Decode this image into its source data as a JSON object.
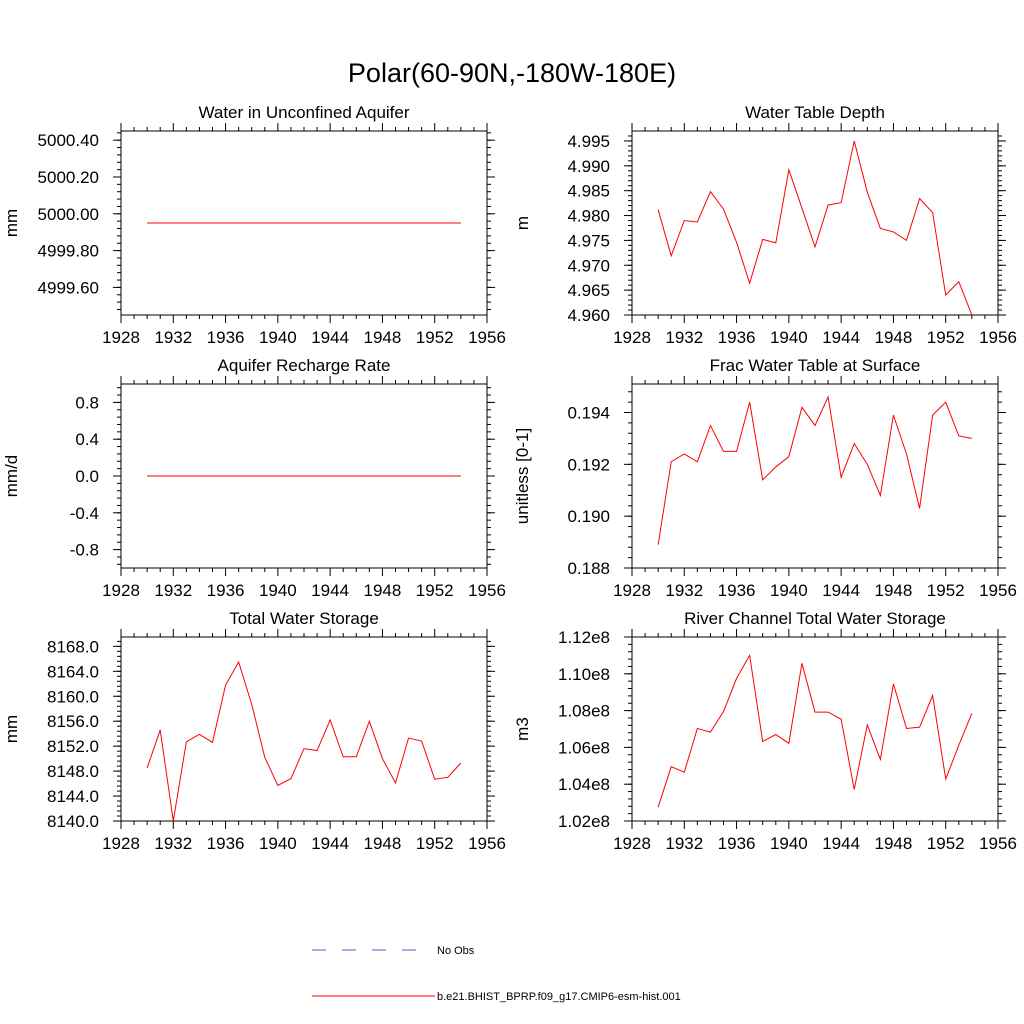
{
  "figure_title": "Polar(60-90N,-180W-180E)",
  "legend": [
    {
      "label": "No Obs",
      "color": "#5a5ad6",
      "style": "dashed"
    },
    {
      "label": "b.e21.BHIST_BPRP.f09_g17.CMIP6-esm-hist.001",
      "color": "#ff0000",
      "style": "solid"
    }
  ],
  "chart_data": [
    {
      "type": "line",
      "title": "Water in Unconfined Aquifer",
      "ylabel": "mm",
      "xlabel": "",
      "xlim": [
        1928,
        1956
      ],
      "ylim": [
        4999.45,
        5000.45
      ],
      "xticks": [
        1928,
        1932,
        1936,
        1940,
        1944,
        1948,
        1952,
        1956
      ],
      "xtick_labels": [
        "1928",
        "1932",
        "1936",
        "1940",
        "1944",
        "1948",
        "1952",
        "1956"
      ],
      "yticks": [
        4999.6,
        4999.8,
        5000.0,
        5000.2,
        5000.4
      ],
      "ytick_labels": [
        "4999.60",
        "4999.80",
        "5000.00",
        "5000.20",
        "5000.40"
      ],
      "series": [
        {
          "name": "b.e21.BHIST_BPRP.f09_g17.CMIP6-esm-hist.001",
          "color": "#ff0000",
          "x": [
            1930,
            1954
          ],
          "y": [
            4999.95,
            4999.95
          ]
        }
      ]
    },
    {
      "type": "line",
      "title": "Water Table Depth",
      "ylabel": "m",
      "xlabel": "",
      "xlim": [
        1928,
        1956
      ],
      "ylim": [
        4.96,
        4.997
      ],
      "xticks": [
        1928,
        1932,
        1936,
        1940,
        1944,
        1948,
        1952,
        1956
      ],
      "xtick_labels": [
        "1928",
        "1932",
        "1936",
        "1940",
        "1944",
        "1948",
        "1952",
        "1956"
      ],
      "yticks": [
        4.96,
        4.965,
        4.97,
        4.975,
        4.98,
        4.985,
        4.99,
        4.995
      ],
      "ytick_labels": [
        "4.960",
        "4.965",
        "4.970",
        "4.975",
        "4.980",
        "4.985",
        "4.990",
        "4.995"
      ],
      "series": [
        {
          "name": "b.e21.BHIST_BPRP.f09_g17.CMIP6-esm-hist.001",
          "color": "#ff0000",
          "x": [
            1930,
            1931,
            1932,
            1933,
            1934,
            1935,
            1936,
            1937,
            1938,
            1939,
            1940,
            1941,
            1942,
            1943,
            1944,
            1945,
            1946,
            1947,
            1948,
            1949,
            1950,
            1951,
            1952,
            1953,
            1954
          ],
          "y": [
            4.9812,
            4.9719,
            4.979,
            4.9787,
            4.9848,
            4.9813,
            4.9746,
            4.9664,
            4.9752,
            4.9745,
            4.9892,
            4.9815,
            4.9737,
            4.9821,
            4.9826,
            4.995,
            4.9847,
            4.9774,
            4.9767,
            4.975,
            4.9834,
            4.9806,
            4.964,
            4.9667,
            4.96
          ]
        }
      ]
    },
    {
      "type": "line",
      "title": "Aquifer Recharge Rate",
      "ylabel": "mm/d",
      "xlabel": "",
      "xlim": [
        1928,
        1956
      ],
      "ylim": [
        -1.0,
        1.0
      ],
      "xticks": [
        1928,
        1932,
        1936,
        1940,
        1944,
        1948,
        1952,
        1956
      ],
      "xtick_labels": [
        "1928",
        "1932",
        "1936",
        "1940",
        "1944",
        "1948",
        "1952",
        "1956"
      ],
      "yticks": [
        -0.8,
        -0.4,
        0.0,
        0.4,
        0.8
      ],
      "ytick_labels": [
        "-0.8",
        "-0.4",
        "0.0",
        "0.4",
        "0.8"
      ],
      "series": [
        {
          "name": "b.e21.BHIST_BPRP.f09_g17.CMIP6-esm-hist.001",
          "color": "#ff0000",
          "x": [
            1930,
            1954
          ],
          "y": [
            0.0,
            0.0
          ]
        }
      ]
    },
    {
      "type": "line",
      "title": "Frac Water Table at Surface",
      "ylabel": "unitless [0-1]",
      "xlabel": "",
      "xlim": [
        1928,
        1956
      ],
      "ylim": [
        0.188,
        0.1951
      ],
      "xticks": [
        1928,
        1932,
        1936,
        1940,
        1944,
        1948,
        1952,
        1956
      ],
      "xtick_labels": [
        "1928",
        "1932",
        "1936",
        "1940",
        "1944",
        "1948",
        "1952",
        "1956"
      ],
      "yticks": [
        0.188,
        0.19,
        0.192,
        0.194
      ],
      "ytick_labels": [
        "0.188",
        "0.190",
        "0.192",
        "0.194"
      ],
      "series": [
        {
          "name": "b.e21.BHIST_BPRP.f09_g17.CMIP6-esm-hist.001",
          "color": "#ff0000",
          "x": [
            1930,
            1931,
            1932,
            1933,
            1934,
            1935,
            1936,
            1937,
            1938,
            1939,
            1940,
            1941,
            1942,
            1943,
            1944,
            1945,
            1946,
            1947,
            1948,
            1949,
            1950,
            1951,
            1952,
            1953,
            1954
          ],
          "y": [
            0.1889,
            0.1921,
            0.1924,
            0.1921,
            0.1935,
            0.1925,
            0.1925,
            0.1944,
            0.1914,
            0.1919,
            0.1923,
            0.1942,
            0.1935,
            0.1946,
            0.1915,
            0.1928,
            0.192,
            0.1908,
            0.1939,
            0.1924,
            0.1903,
            0.1939,
            0.1944,
            0.1931,
            0.193
          ]
        }
      ]
    },
    {
      "type": "line",
      "title": "Total Water Storage",
      "ylabel": "mm",
      "xlabel": "",
      "xlim": [
        1928,
        1956
      ],
      "ylim": [
        8140.0,
        8169.5
      ],
      "xticks": [
        1928,
        1932,
        1936,
        1940,
        1944,
        1948,
        1952,
        1956
      ],
      "xtick_labels": [
        "1928",
        "1932",
        "1936",
        "1940",
        "1944",
        "1948",
        "1952",
        "1956"
      ],
      "yticks": [
        8140,
        8144,
        8148,
        8152,
        8156,
        8160,
        8164,
        8168
      ],
      "ytick_labels": [
        "8140.0",
        "8144.0",
        "8148.0",
        "8152.0",
        "8156.0",
        "8160.0",
        "8164.0",
        "8168.0"
      ],
      "series": [
        {
          "name": "b.e21.BHIST_BPRP.f09_g17.CMIP6-esm-hist.001",
          "color": "#ff0000",
          "x": [
            1930,
            1931,
            1932,
            1933,
            1934,
            1935,
            1936,
            1937,
            1938,
            1939,
            1940,
            1941,
            1942,
            1943,
            1944,
            1945,
            1946,
            1947,
            1948,
            1949,
            1950,
            1951,
            1952,
            1953,
            1954
          ],
          "y": [
            8148.5,
            8154.6,
            8140.0,
            8152.7,
            8153.9,
            8152.6,
            8161.8,
            8165.5,
            8158.7,
            8150.2,
            8145.7,
            8146.8,
            8151.6,
            8151.3,
            8156.2,
            8150.3,
            8150.3,
            8156.0,
            8150.0,
            8146.1,
            8153.3,
            8152.8,
            8146.7,
            8147.0,
            8149.3
          ]
        }
      ]
    },
    {
      "type": "line",
      "title": "River Channel Total Water Storage",
      "ylabel": "m3",
      "xlabel": "",
      "xlim": [
        1928,
        1956
      ],
      "ylim": [
        102000000.0,
        112000000.0
      ],
      "xticks": [
        1928,
        1932,
        1936,
        1940,
        1944,
        1948,
        1952,
        1956
      ],
      "xtick_labels": [
        "1928",
        "1932",
        "1936",
        "1940",
        "1944",
        "1948",
        "1952",
        "1956"
      ],
      "yticks": [
        102000000.0,
        104000000.0,
        106000000.0,
        108000000.0,
        110000000.0,
        112000000.0
      ],
      "ytick_labels": [
        "1.02e8",
        "1.04e8",
        "1.06e8",
        "1.08e8",
        "1.10e8",
        "1.12e8"
      ],
      "series": [
        {
          "name": "b.e21.BHIST_BPRP.f09_g17.CMIP6-esm-hist.001",
          "color": "#ff0000",
          "x": [
            1930,
            1931,
            1932,
            1933,
            1934,
            1935,
            1936,
            1937,
            1938,
            1939,
            1940,
            1941,
            1942,
            1943,
            1944,
            1945,
            1946,
            1947,
            1948,
            1949,
            1950,
            1951,
            1952,
            1953,
            1954
          ],
          "y": [
            102750000.0,
            104950000.0,
            104650000.0,
            107030000.0,
            106830000.0,
            107950000.0,
            109750000.0,
            111000000.0,
            106320000.0,
            106700000.0,
            106220000.0,
            110570000.0,
            107920000.0,
            107920000.0,
            107530000.0,
            103720000.0,
            107220000.0,
            105350000.0,
            109450000.0,
            107030000.0,
            107100000.0,
            108820000.0,
            104280000.0,
            106120000.0,
            107850000.0
          ]
        }
      ]
    }
  ]
}
